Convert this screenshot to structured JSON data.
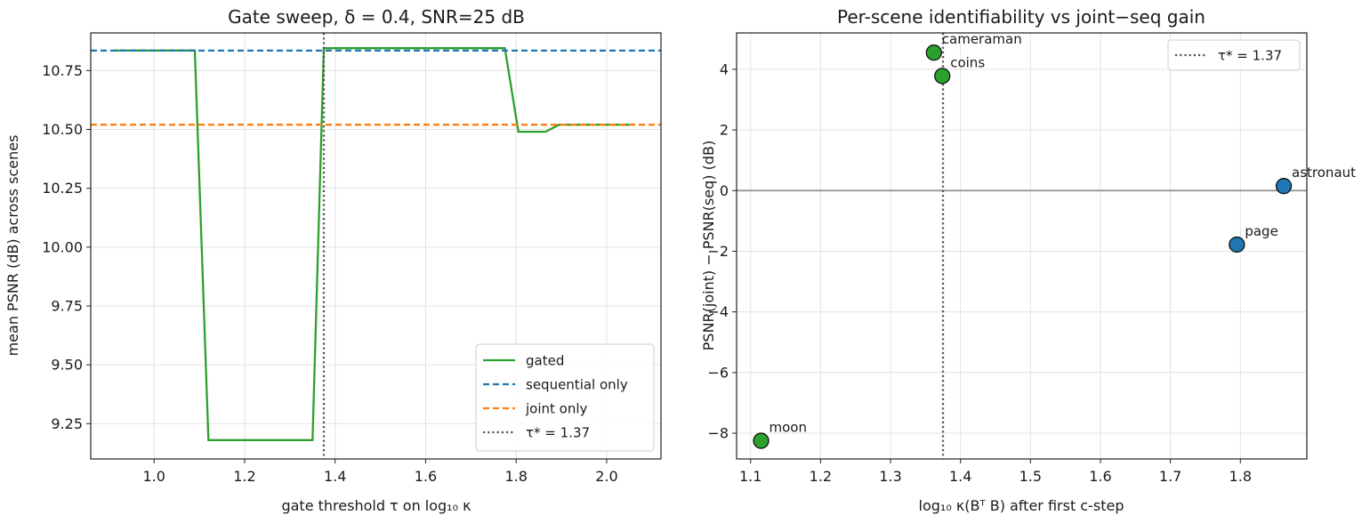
{
  "chart_data": [
    {
      "type": "line",
      "title": "Gate sweep, δ = 0.4, SNR=25 dB",
      "xlabel": "gate threshold τ on log₁₀ κ",
      "ylabel": "mean PSNR (dB) across scenes",
      "xlim": [
        0.86,
        2.12
      ],
      "ylim": [
        9.1,
        10.91
      ],
      "xticks": [
        "1.0",
        "1.2",
        "1.4",
        "1.6",
        "1.8",
        "2.0"
      ],
      "xtick_values": [
        1.0,
        1.2,
        1.4,
        1.6,
        1.8,
        2.0
      ],
      "yticks": [
        "9.25",
        "9.50",
        "9.75",
        "10.00",
        "10.25",
        "10.50",
        "10.75"
      ],
      "ytick_values": [
        9.25,
        9.5,
        9.75,
        10.0,
        10.25,
        10.5,
        10.75
      ],
      "grid": true,
      "legend_position": "lower-right",
      "series": [
        {
          "name": "gated",
          "color": "#2ca02c",
          "style": "solid",
          "x": [
            0.91,
            1.09,
            1.12,
            1.35,
            1.375,
            1.775,
            1.805,
            1.865,
            1.895,
            2.05
          ],
          "y": [
            10.835,
            10.835,
            9.18,
            9.18,
            10.845,
            10.845,
            10.49,
            10.49,
            10.52,
            10.52
          ]
        },
        {
          "name": "sequential only",
          "color": "#1f77b4",
          "style": "dashed",
          "hline": 10.835
        },
        {
          "name": "joint only",
          "color": "#ff7f0e",
          "style": "dashed",
          "hline": 10.52
        },
        {
          "name": "τ* = 1.37",
          "color": "#555555",
          "style": "dotted",
          "vline": 1.375
        }
      ]
    },
    {
      "type": "scatter",
      "title": "Per-scene identifiability vs joint−seq gain",
      "xlabel": "log₁₀ κ(Bᵀ B) after first c-step",
      "ylabel": "PSNR(joint) − PSNR(seq) (dB)",
      "xlim": [
        1.08,
        1.895
      ],
      "ylim": [
        -8.85,
        5.2
      ],
      "xticks": [
        "1.1",
        "1.2",
        "1.3",
        "1.4",
        "1.5",
        "1.6",
        "1.7",
        "1.8"
      ],
      "xtick_values": [
        1.1,
        1.2,
        1.3,
        1.4,
        1.5,
        1.6,
        1.7,
        1.8
      ],
      "yticks": [
        "−8",
        "−6",
        "−4",
        "−2",
        "0",
        "2",
        "4"
      ],
      "ytick_values": [
        -8,
        -6,
        -4,
        -2,
        0,
        2,
        4
      ],
      "grid": true,
      "legend_position": "top-right",
      "zero_line": 0,
      "points": [
        {
          "label": "cameraman",
          "x": 1.362,
          "y": 4.55,
          "color": "#2ca02c"
        },
        {
          "label": "coins",
          "x": 1.374,
          "y": 3.78,
          "color": "#2ca02c"
        },
        {
          "label": "astronaut",
          "x": 1.862,
          "y": 0.15,
          "color": "#1f77b4"
        },
        {
          "label": "page",
          "x": 1.795,
          "y": -1.78,
          "color": "#1f77b4"
        },
        {
          "label": "moon",
          "x": 1.115,
          "y": -8.25,
          "color": "#2ca02c"
        }
      ],
      "vline": {
        "name": "τ* = 1.37",
        "x": 1.375,
        "color": "#555555"
      }
    }
  ]
}
